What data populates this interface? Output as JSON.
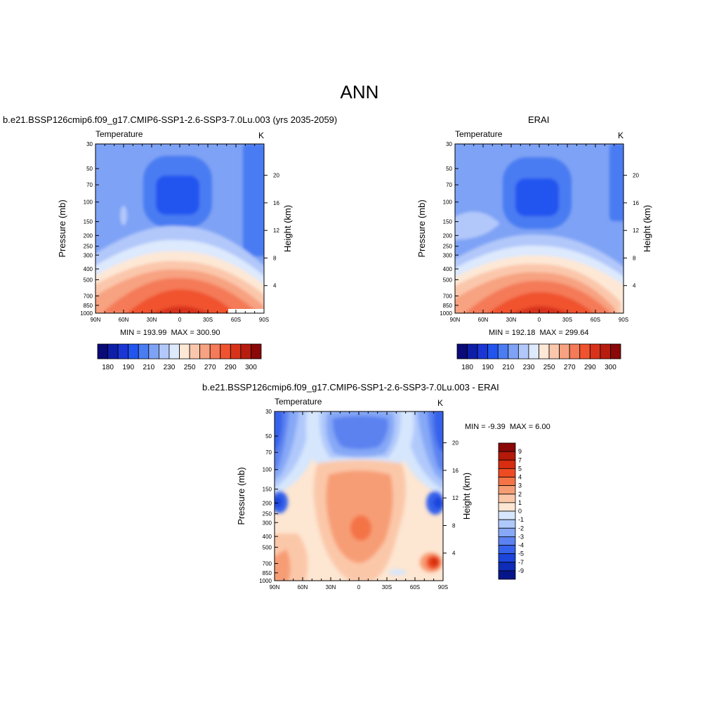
{
  "main_title": "ANN",
  "colors": {
    "abs_palette": [
      "#0a0a78",
      "#0d1fa8",
      "#1a37d6",
      "#2255f0",
      "#4a7cf2",
      "#7ea2f5",
      "#b2c8fa",
      "#dde9fd",
      "#fde8d6",
      "#fbc7ac",
      "#f7a281",
      "#f47a58",
      "#f0532f",
      "#d8331a",
      "#b81c0e",
      "#8a0808"
    ],
    "diff_palette": [
      "#8a0808",
      "#b51909",
      "#d72d10",
      "#ef4b22",
      "#f47347",
      "#f79d74",
      "#fbc7a9",
      "#fde6d2",
      "#d6e6fd",
      "#b0c9fb",
      "#86a8f6",
      "#5b82f0",
      "#3562ea",
      "#1c45dc",
      "#0e2cb6",
      "#06168a"
    ]
  },
  "panels": [
    {
      "title": "b.e21.BSSP126cmip6.f09_g17.CMIP6-SSP1-2.6-SSP3-7.0Lu.003 (yrs 2035-2059)",
      "field": "Temperature",
      "units": "K",
      "min_label": "MIN = 193.99",
      "max_label": "MAX = 300.90",
      "colorbar_labels": [
        "180",
        "190",
        "210",
        "230",
        "250",
        "270",
        "290",
        "300"
      ]
    },
    {
      "title": "ERAI",
      "field": "Temperature",
      "units": "K",
      "min_label": "MIN = 192.18",
      "max_label": "MAX = 299.64",
      "colorbar_labels": [
        "180",
        "190",
        "210",
        "230",
        "250",
        "270",
        "290",
        "300"
      ]
    },
    {
      "title": "b.e21.BSSP126cmip6.f09_g17.CMIP6-SSP1-2.6-SSP3-7.0Lu.003 - ERAI",
      "field": "Temperature",
      "units": "K",
      "min_label": "MIN =  -9.39",
      "max_label": "MAX =   6.00",
      "colorbar_labels": [
        "9",
        "7",
        "5",
        "4",
        "3",
        "2",
        "1",
        "0",
        "-1",
        "-2",
        "-3",
        "-4",
        "-5",
        "-7",
        "-9"
      ]
    }
  ],
  "axes": {
    "ylabel": "Pressure (mb)",
    "ylabel_right": "Height (km)",
    "pressure_ticks": [
      "30",
      "50",
      "70",
      "100",
      "150",
      "200",
      "250",
      "300",
      "400",
      "500",
      "700",
      "850",
      "1000"
    ],
    "height_ticks": [
      "20",
      "16",
      "12",
      "8",
      "4"
    ],
    "lat_ticks": [
      "90N",
      "60N",
      "30N",
      "0",
      "30S",
      "60S",
      "90S"
    ]
  },
  "chart_data": [
    {
      "type": "heatmap",
      "title": "b.e21.BSSP126cmip6.f09_g17.CMIP6-SSP1-2.6-SSP3-7.0Lu.003 (yrs 2035-2059)",
      "subtitle": "Temperature",
      "units": "K",
      "xlabel": "",
      "ylabel": "Pressure (mb)",
      "ylabel_right": "Height (km)",
      "x": [
        90,
        60,
        30,
        0,
        -30,
        -60,
        -90
      ],
      "y": [
        30,
        50,
        70,
        100,
        150,
        200,
        250,
        300,
        400,
        500,
        700,
        850,
        1000
      ],
      "ylim": [
        30,
        1000
      ],
      "log_y": true,
      "min": 193.99,
      "max": 300.9,
      "levels": [
        180,
        185,
        190,
        200,
        210,
        220,
        230,
        240,
        250,
        260,
        270,
        280,
        290,
        295,
        300
      ]
    },
    {
      "type": "heatmap",
      "title": "ERAI",
      "subtitle": "Temperature",
      "units": "K",
      "xlabel": "",
      "ylabel": "Pressure (mb)",
      "ylabel_right": "Height (km)",
      "x": [
        90,
        60,
        30,
        0,
        -30,
        -60,
        -90
      ],
      "y": [
        30,
        50,
        70,
        100,
        150,
        200,
        250,
        300,
        400,
        500,
        700,
        850,
        1000
      ],
      "ylim": [
        30,
        1000
      ],
      "log_y": true,
      "min": 192.18,
      "max": 299.64,
      "levels": [
        180,
        185,
        190,
        200,
        210,
        220,
        230,
        240,
        250,
        260,
        270,
        280,
        290,
        295,
        300
      ]
    },
    {
      "type": "heatmap",
      "title": "b.e21.BSSP126cmip6.f09_g17.CMIP6-SSP1-2.6-SSP3-7.0Lu.003 - ERAI",
      "subtitle": "Temperature",
      "units": "K",
      "xlabel": "",
      "ylabel": "Pressure (mb)",
      "ylabel_right": "Height (km)",
      "x": [
        90,
        60,
        30,
        0,
        -30,
        -60,
        -90
      ],
      "y": [
        30,
        50,
        70,
        100,
        150,
        200,
        250,
        300,
        400,
        500,
        700,
        850,
        1000
      ],
      "ylim": [
        30,
        1000
      ],
      "log_y": true,
      "min": -9.39,
      "max": 6.0,
      "levels": [
        -9,
        -7,
        -5,
        -4,
        -3,
        -2,
        -1,
        0,
        1,
        2,
        3,
        4,
        5,
        7,
        9
      ]
    }
  ]
}
